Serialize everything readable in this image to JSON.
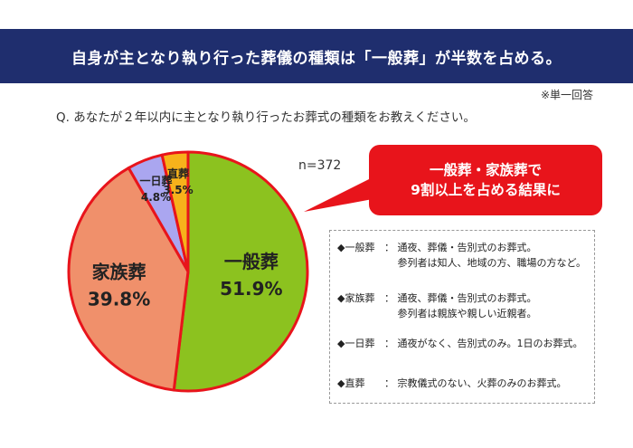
{
  "header": {
    "title": "自身が主となり執り行った葬儀の種類は「一般葬」が半数を占める。"
  },
  "note": "※単一回答",
  "question": "Q. あなたが２年以内に主となり執り行ったお葬式の種類をお教えください。",
  "sample_size": "n=372",
  "callout": {
    "line1": "一般葬・家族葬で",
    "line2": "9割以上を占める結果に"
  },
  "legend": [
    {
      "term": "◆一般葬",
      "colon": "：",
      "line1": "通夜、葬儀・告別式のお葬式。",
      "line2": "参列者は知人、地域の方、職場の方など。"
    },
    {
      "term": "◆家族葬",
      "colon": "：",
      "line1": "通夜、葬儀・告別式のお葬式。",
      "line2": "参列者は親族や親しい近親者。"
    },
    {
      "term": "◆一日葬",
      "colon": "：",
      "line1": "通夜がなく、告別式のみ。1日のお葬式。",
      "line2": ""
    },
    {
      "term": "◆直葬",
      "colon": "：",
      "line1": "宗教儀式のない、火葬のみのお葬式。",
      "line2": ""
    }
  ],
  "chart_data": {
    "type": "pie",
    "title": "",
    "categories": [
      "一般葬",
      "家族葬",
      "一日葬",
      "直葬"
    ],
    "values": [
      51.9,
      39.8,
      4.8,
      3.5
    ],
    "value_labels": [
      "51.9%",
      "39.8%",
      "4.8%",
      "3.5%"
    ],
    "colors": [
      "#8cc21f",
      "#f0906b",
      "#aaa6f0",
      "#f7b21b"
    ],
    "border_color": "#e8141b",
    "start": "12 o'clock",
    "direction": "clockwise"
  }
}
